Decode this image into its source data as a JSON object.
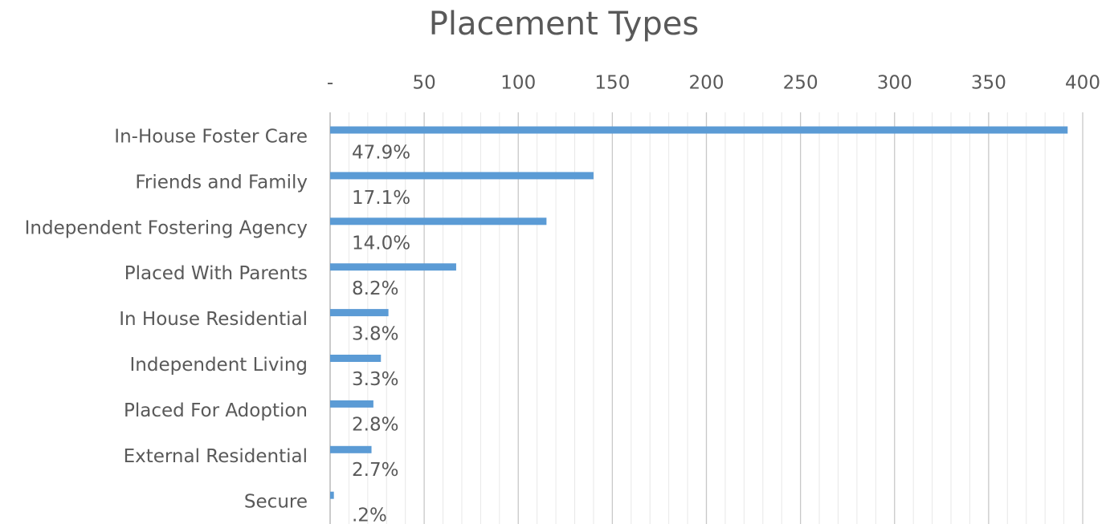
{
  "chart_data": {
    "type": "bar",
    "orientation": "horizontal",
    "title": "Placement Types",
    "categories": [
      "In-House Foster Care",
      "Friends and Family",
      "Independent Fostering Agency",
      "Placed With Parents",
      "In House Residential",
      "Independent Living",
      "Placed For Adoption",
      "External Residential",
      "Secure"
    ],
    "values": [
      392,
      140,
      115,
      67,
      31,
      27,
      23,
      22,
      2
    ],
    "color": "#5b9bd5",
    "shares": {
      "values": [
        47.9,
        17.1,
        14.0,
        8.2,
        3.8,
        3.3,
        2.8,
        2.7,
        0.2
      ],
      "value_labels": [
        "47.9%",
        "17.1%",
        "14.0%",
        "8.2%",
        "3.8%",
        "3.3%",
        "2.8%",
        "2.7%",
        ".2%"
      ]
    },
    "xlim": [
      0,
      400
    ],
    "xticks": [
      {
        "value": 0,
        "label": "-"
      },
      50,
      100,
      150,
      200,
      250,
      300,
      350,
      400
    ],
    "xminorticks": [
      10,
      20,
      30,
      40,
      60,
      70,
      80,
      90,
      110,
      120,
      130,
      140,
      160,
      170,
      180,
      190,
      210,
      220,
      230,
      240,
      260,
      270,
      280,
      290,
      310,
      320,
      330,
      340,
      360,
      370,
      380,
      390
    ],
    "grid": true
  }
}
